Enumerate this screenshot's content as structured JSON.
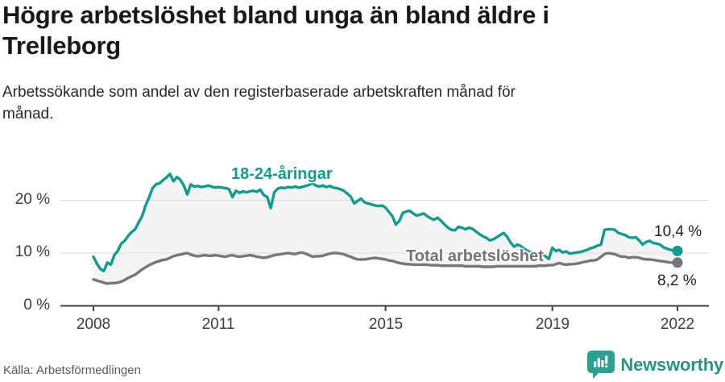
{
  "header": {
    "title_line1": "Högre arbetslöshet bland unga än bland äldre i",
    "title_line2": "Trelleborg",
    "subtitle_line1": "Arbetssökande som andel av den registerbaserade arbetskraften månad för",
    "subtitle_line2": "månad."
  },
  "footer": {
    "source": "Källa: Arbetsförmedlingen",
    "brand": "Newsworthy",
    "brand_icon": "bar-chart-speech-bubble-icon"
  },
  "colors": {
    "youth_line": "#149a8c",
    "total_line": "#77777b",
    "area_fill": "#f4f4f5",
    "grid": "#dcdcdc",
    "axis": "#3f3f3f",
    "brand_teal": "#2f9e92"
  },
  "chart_data": {
    "type": "line",
    "title": "Högre arbetslöshet bland unga än bland äldre i Trelleborg",
    "subtitle": "Arbetssökande som andel av den registerbaserade arbetskraften månad för månad.",
    "x_unit": "month",
    "x_range": [
      "2008-01",
      "2022-01"
    ],
    "x_tick_labels": [
      "2008",
      "2011",
      "2015",
      "2019",
      "2022"
    ],
    "y_tick_labels": [
      "0 %",
      "10 %",
      "20 %"
    ],
    "ylim": [
      0,
      27
    ],
    "grid": "horizontal",
    "legend_position": "inline-labels",
    "area_fill_between_series": true,
    "series": [
      {
        "name": "18-24-åringar",
        "color": "#149a8c",
        "end_label": "10,4 %",
        "end_value": 10.4,
        "values": [
          9.3,
          8.0,
          7.0,
          6.6,
          8.2,
          7.8,
          9.6,
          10.4,
          11.8,
          12.3,
          13.3,
          14.0,
          14.5,
          15.8,
          17.0,
          19.0,
          20.5,
          22.3,
          23.0,
          23.2,
          23.8,
          24.3,
          25.0,
          23.6,
          24.4,
          23.9,
          22.8,
          21.1,
          23.0,
          22.6,
          22.7,
          22.5,
          22.6,
          22.8,
          22.6,
          22.4,
          22.5,
          22.4,
          22.3,
          22.1,
          20.6,
          21.8,
          21.4,
          21.7,
          21.5,
          21.7,
          21.8,
          21.6,
          22.0,
          21.0,
          20.6,
          18.5,
          21.5,
          22.2,
          22.4,
          22.3,
          22.5,
          22.4,
          22.6,
          22.4,
          22.5,
          22.7,
          22.9,
          23.2,
          22.8,
          22.6,
          22.8,
          22.5,
          22.7,
          22.4,
          22.3,
          22.1,
          21.8,
          21.3,
          20.7,
          19.4,
          19.9,
          20.3,
          19.6,
          19.4,
          19.2,
          19.0,
          18.9,
          19.0,
          18.6,
          17.8,
          17.0,
          15.4,
          16.1,
          17.6,
          17.9,
          18.0,
          17.5,
          17.1,
          17.3,
          17.5,
          17.0,
          16.6,
          16.3,
          16.7,
          16.1,
          15.4,
          14.8,
          14.4,
          14.3,
          15.0,
          14.8,
          14.5,
          14.8,
          14.6,
          14.1,
          13.6,
          13.2,
          12.9,
          12.4,
          12.6,
          13.0,
          13.4,
          13.8,
          13.1,
          12.0,
          11.2,
          11.6,
          11.3,
          10.8,
          10.4,
          10.1,
          9.8,
          9.6,
          9.8,
          9.4,
          8.9,
          11.0,
          10.4,
          10.6,
          10.1,
          10.3,
          9.9,
          10.0,
          10.1,
          10.2,
          10.4,
          10.6,
          10.9,
          11.1,
          11.4,
          11.6,
          14.4,
          14.5,
          14.5,
          14.4,
          13.8,
          13.6,
          13.4,
          13.0,
          12.9,
          13.0,
          12.4,
          11.6,
          12.1,
          12.3,
          11.9,
          11.8,
          11.6,
          11.1,
          10.8,
          10.6,
          10.5,
          10.4
        ]
      },
      {
        "name": "Total arbetslöshet",
        "color": "#77777b",
        "end_label": "8,2 %",
        "end_value": 8.2,
        "values": [
          5.0,
          4.8,
          4.6,
          4.4,
          4.2,
          4.3,
          4.3,
          4.4,
          4.6,
          4.9,
          5.3,
          5.6,
          5.9,
          6.4,
          6.9,
          7.3,
          7.7,
          8.0,
          8.3,
          8.5,
          8.7,
          8.8,
          9.1,
          9.4,
          9.6,
          9.7,
          9.9,
          10.0,
          9.7,
          9.5,
          9.4,
          9.5,
          9.6,
          9.5,
          9.5,
          9.6,
          9.5,
          9.4,
          9.3,
          9.5,
          9.6,
          9.4,
          9.3,
          9.4,
          9.5,
          9.6,
          9.5,
          9.3,
          9.2,
          9.1,
          9.2,
          9.4,
          9.6,
          9.7,
          9.8,
          9.9,
          10.0,
          9.9,
          9.8,
          10.0,
          10.1,
          9.9,
          9.6,
          9.3,
          9.4,
          9.4,
          9.5,
          9.7,
          9.9,
          10.0,
          10.0,
          9.9,
          9.8,
          9.5,
          9.3,
          9.0,
          8.8,
          8.8,
          8.8,
          8.9,
          9.0,
          9.1,
          9.0,
          8.9,
          8.8,
          8.6,
          8.5,
          8.3,
          8.1,
          8.0,
          7.9,
          7.9,
          7.8,
          7.8,
          7.8,
          7.8,
          7.8,
          7.7,
          7.7,
          7.7,
          7.6,
          7.6,
          7.6,
          7.6,
          7.6,
          7.6,
          7.6,
          7.5,
          7.5,
          7.5,
          7.5,
          7.5,
          7.4,
          7.4,
          7.4,
          7.4,
          7.5,
          7.5,
          7.5,
          7.5,
          7.5,
          7.5,
          7.5,
          7.5,
          7.5,
          7.5,
          7.5,
          7.5,
          7.6,
          7.6,
          7.6,
          7.7,
          7.7,
          7.9,
          8.1,
          7.9,
          7.8,
          7.9,
          7.9,
          8.0,
          8.1,
          8.3,
          8.4,
          8.6,
          8.6,
          8.8,
          9.3,
          9.8,
          10.0,
          9.9,
          9.8,
          9.5,
          9.3,
          9.3,
          9.1,
          9.2,
          9.2,
          9.1,
          8.9,
          8.8,
          8.8,
          8.7,
          8.6,
          8.5,
          8.4,
          8.3,
          8.2,
          8.2,
          8.2
        ]
      }
    ]
  }
}
